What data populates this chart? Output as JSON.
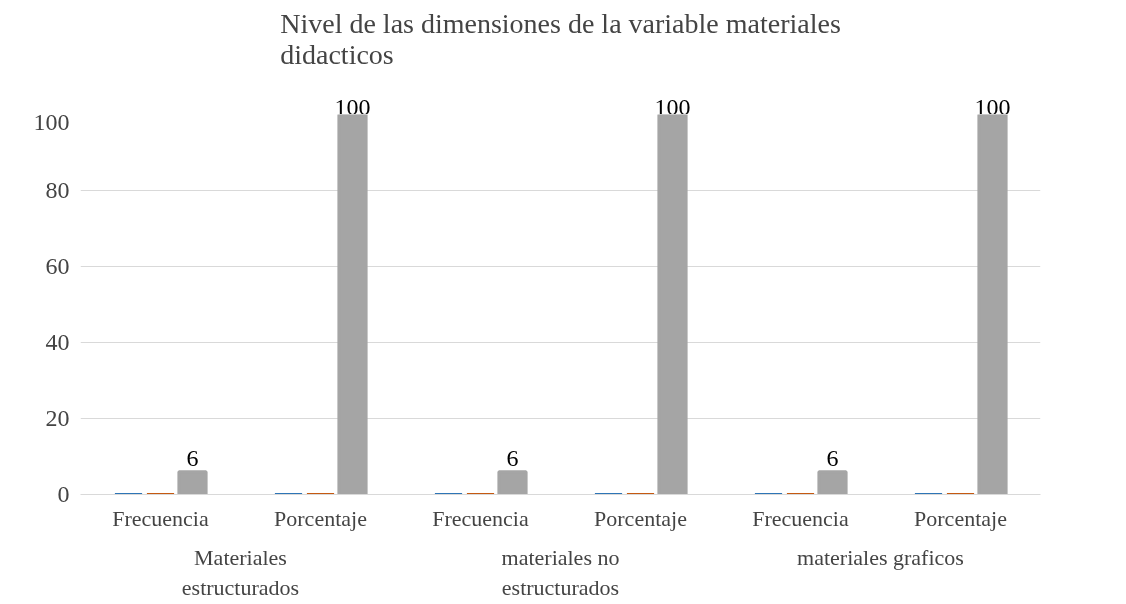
{
  "chart_data": {
    "type": "bar",
    "title": "Nivel de las dimensiones de la variable materiales didacticos",
    "categories": [
      "Frecuencia",
      "Porcentaje",
      "Frecuencia",
      "Porcentaje",
      "Frecuencia",
      "Porcentaje"
    ],
    "annotations": [
      "Materiales estructurados",
      "materiales no estructurados",
      "materiales graficos"
    ],
    "series": [
      {
        "color": "#2e75b6",
        "values": [
          0,
          0,
          0,
          0,
          0,
          0
        ]
      },
      {
        "color": "#c55a11",
        "values": [
          0,
          0,
          0,
          0,
          0,
          0
        ]
      },
      {
        "color": "#a5a5a5",
        "values": [
          6,
          100,
          6,
          100,
          6,
          100
        ],
        "value_labels": [
          "6",
          "100",
          "6",
          "100",
          "6",
          "100"
        ]
      }
    ],
    "ylim": [
      0,
      100
    ],
    "yticks": [
      0,
      20,
      40,
      60,
      80,
      100
    ],
    "grid": "y"
  }
}
